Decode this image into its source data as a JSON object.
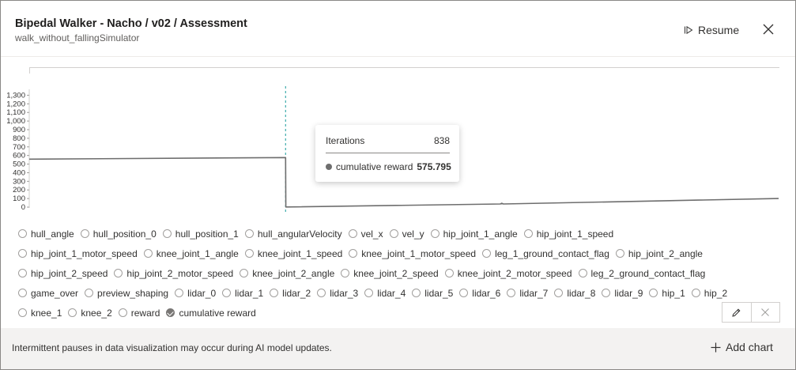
{
  "header": {
    "title": "Bipedal Walker - Nacho / v02 / Assessment",
    "subtitle": "walk_without_fallingSimulator",
    "resume_label": "Resume"
  },
  "tooltip": {
    "x_label": "Iterations",
    "x_value": "838",
    "series_label": "cumulative reward",
    "series_value": "575.795"
  },
  "toggles": [
    [
      {
        "label": "hull_angle",
        "checked": false
      },
      {
        "label": "hull_position_0",
        "checked": false
      },
      {
        "label": "hull_position_1",
        "checked": false
      },
      {
        "label": "hull_angularVelocity",
        "checked": false
      },
      {
        "label": "vel_x",
        "checked": false
      },
      {
        "label": "vel_y",
        "checked": false
      },
      {
        "label": "hip_joint_1_angle",
        "checked": false
      },
      {
        "label": "hip_joint_1_speed",
        "checked": false
      }
    ],
    [
      {
        "label": "hip_joint_1_motor_speed",
        "checked": false
      },
      {
        "label": "knee_joint_1_angle",
        "checked": false
      },
      {
        "label": "knee_joint_1_speed",
        "checked": false
      },
      {
        "label": "knee_joint_1_motor_speed",
        "checked": false
      },
      {
        "label": "leg_1_ground_contact_flag",
        "checked": false
      },
      {
        "label": "hip_joint_2_angle",
        "checked": false
      }
    ],
    [
      {
        "label": "hip_joint_2_speed",
        "checked": false
      },
      {
        "label": "hip_joint_2_motor_speed",
        "checked": false
      },
      {
        "label": "knee_joint_2_angle",
        "checked": false
      },
      {
        "label": "knee_joint_2_speed",
        "checked": false
      },
      {
        "label": "knee_joint_2_motor_speed",
        "checked": false
      },
      {
        "label": "leg_2_ground_contact_flag",
        "checked": false
      }
    ],
    [
      {
        "label": "game_over",
        "checked": false
      },
      {
        "label": "preview_shaping",
        "checked": false
      },
      {
        "label": "lidar_0",
        "checked": false
      },
      {
        "label": "lidar_1",
        "checked": false
      },
      {
        "label": "lidar_2",
        "checked": false
      },
      {
        "label": "lidar_3",
        "checked": false
      },
      {
        "label": "lidar_4",
        "checked": false
      },
      {
        "label": "lidar_5",
        "checked": false
      },
      {
        "label": "lidar_6",
        "checked": false
      },
      {
        "label": "lidar_7",
        "checked": false
      },
      {
        "label": "lidar_8",
        "checked": false
      },
      {
        "label": "lidar_9",
        "checked": false
      },
      {
        "label": "hip_1",
        "checked": false
      },
      {
        "label": "hip_2",
        "checked": false
      }
    ],
    [
      {
        "label": "knee_1",
        "checked": false
      },
      {
        "label": "knee_2",
        "checked": false
      },
      {
        "label": "reward",
        "checked": false
      },
      {
        "label": "cumulative reward",
        "checked": true
      }
    ]
  ],
  "footer": {
    "note": "Intermittent pauses in data visualization may occur during AI model updates.",
    "add_chart_label": "Add chart"
  },
  "icons": {
    "resume": "play-outline-icon",
    "close": "close-icon",
    "edit": "pencil-icon",
    "delete": "close-icon",
    "add": "plus-icon"
  },
  "colors": {
    "series": "#6e6e6e",
    "cursor": "#1a9c9c"
  },
  "chart_data": {
    "type": "line",
    "yticks": [
      "0",
      "100",
      "200",
      "300",
      "400",
      "500",
      "600",
      "700",
      "800",
      "900",
      "1,000",
      "1,100",
      "1,200",
      "1,300"
    ],
    "ylim": [
      0,
      1350
    ],
    "cursor_x": 838,
    "series": [
      {
        "name": "cumulative reward",
        "x": [
          0,
          838,
          839,
          1540,
          1545,
          1550,
          2450
        ],
        "y": [
          557,
          575.795,
          2,
          37,
          45,
          37,
          100
        ]
      }
    ],
    "xlim": [
      0,
      2450
    ]
  }
}
